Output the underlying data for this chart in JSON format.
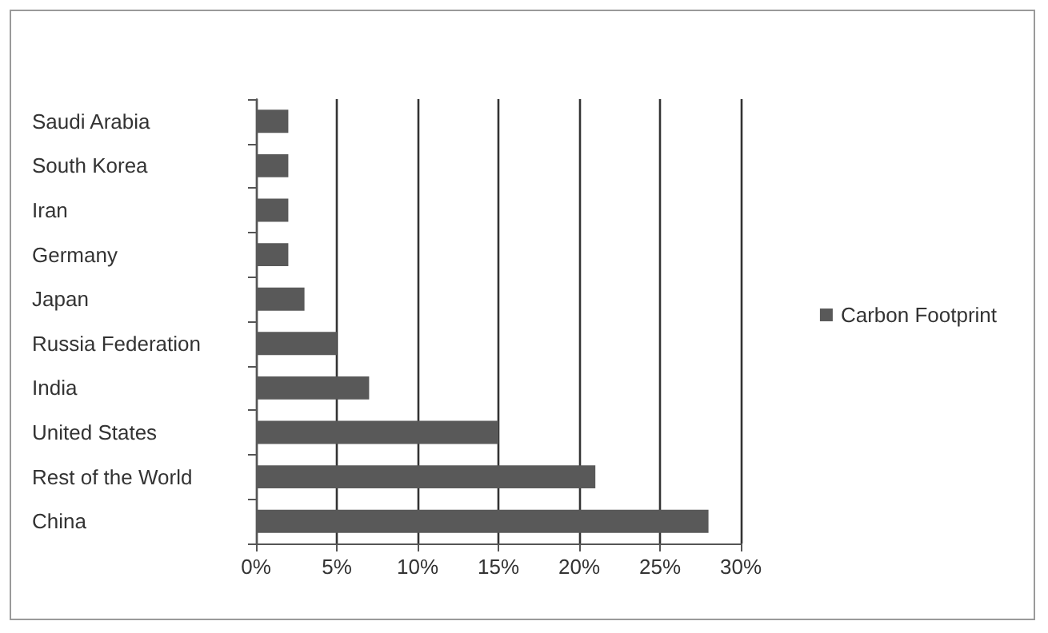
{
  "chart_data": {
    "type": "bar",
    "orientation": "horizontal",
    "categories": [
      "Saudi Arabia",
      "South Korea",
      "Iran",
      "Germany",
      "Japan",
      "Russia Federation",
      "India",
      "United States",
      "Rest of the World",
      "China"
    ],
    "series": [
      {
        "name": "Carbon Footprint",
        "color": "#595959",
        "values": [
          2,
          2,
          2,
          2,
          3,
          5,
          7,
          15,
          21,
          28
        ]
      }
    ],
    "xlim": [
      0,
      30
    ],
    "xticks": [
      {
        "value": 0,
        "label": "0%"
      },
      {
        "value": 5,
        "label": "5%"
      },
      {
        "value": 10,
        "label": "10%"
      },
      {
        "value": 15,
        "label": "15%"
      },
      {
        "value": 20,
        "label": "20%"
      },
      {
        "value": 25,
        "label": "25%"
      },
      {
        "value": 30,
        "label": "30%"
      }
    ],
    "grid": "x",
    "legend": "right"
  }
}
